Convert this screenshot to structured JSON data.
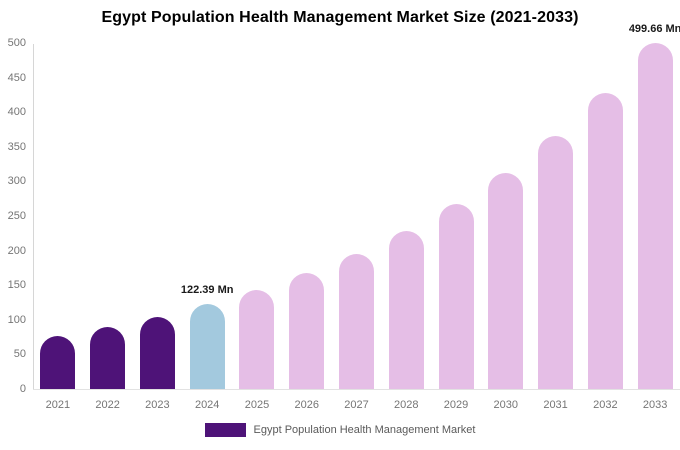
{
  "title": "Egypt Population Health Management Market Size (2021-2033)",
  "legend": {
    "label": "Egypt Population Health Management Market",
    "swatch_color": "#4e1378"
  },
  "colors": {
    "historical_bar": "#4e1378",
    "base_year_bar": "#a3c9de",
    "forecast_bar": "#e5bee6",
    "title_text": "#000000",
    "axis_text": "#757575",
    "legend_text": "#5a5a5a",
    "data_label_text": "#1a1a1a"
  },
  "chart_data": {
    "type": "bar",
    "title": "Egypt Population Health Management Market Size (2021-2033)",
    "xlabel": "",
    "ylabel": "",
    "unit": "Mn",
    "categories": [
      "2021",
      "2022",
      "2023",
      "2024",
      "2025",
      "2026",
      "2027",
      "2028",
      "2029",
      "2030",
      "2031",
      "2032",
      "2033"
    ],
    "values": [
      76.58,
      89.53,
      104.68,
      122.39,
      143.1,
      167.31,
      195.62,
      228.71,
      267.41,
      312.65,
      365.55,
      427.4,
      499.66
    ],
    "bar_roles": [
      "historical",
      "historical",
      "historical",
      "base_year",
      "forecast",
      "forecast",
      "forecast",
      "forecast",
      "forecast",
      "forecast",
      "forecast",
      "forecast",
      "forecast"
    ],
    "data_labels": [
      {
        "year": "2024",
        "text": "122.39 Mn"
      },
      {
        "year": "2033",
        "text": "499.66 Mn"
      }
    ],
    "ylim": [
      0,
      500
    ],
    "ytick_step": 50,
    "yticks": [
      "0",
      "50",
      "100",
      "150",
      "200",
      "250",
      "300",
      "350",
      "400",
      "450",
      "500"
    ],
    "grid": false,
    "legend_position": "bottom",
    "legend_entries": [
      "Egypt Population Health Management Market"
    ]
  }
}
